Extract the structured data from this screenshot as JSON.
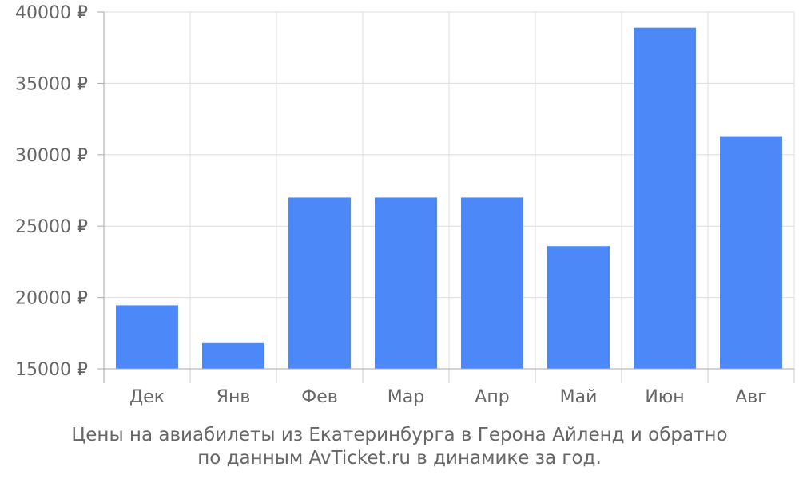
{
  "chart_data": {
    "type": "bar",
    "categories": [
      "Дек",
      "Янв",
      "Фев",
      "Мар",
      "Апр",
      "Май",
      "Июн",
      "Авг"
    ],
    "values": [
      19450,
      16800,
      27000,
      27000,
      27000,
      23600,
      38900,
      31300
    ],
    "ylim": [
      15000,
      40000
    ],
    "yticks": [
      15000,
      20000,
      25000,
      30000,
      35000,
      40000
    ],
    "ytick_labels": [
      "15000 ₽",
      "20000 ₽",
      "25000 ₽",
      "30000 ₽",
      "35000 ₽",
      "40000 ₽"
    ],
    "bar_color": "#4d88f9",
    "grid": true,
    "caption_line1": "Цены на авиабилеты из Екатеринбурга в Герона Айленд и обратно",
    "caption_line2": "по данным AvTicket.ru в динамике за год."
  }
}
